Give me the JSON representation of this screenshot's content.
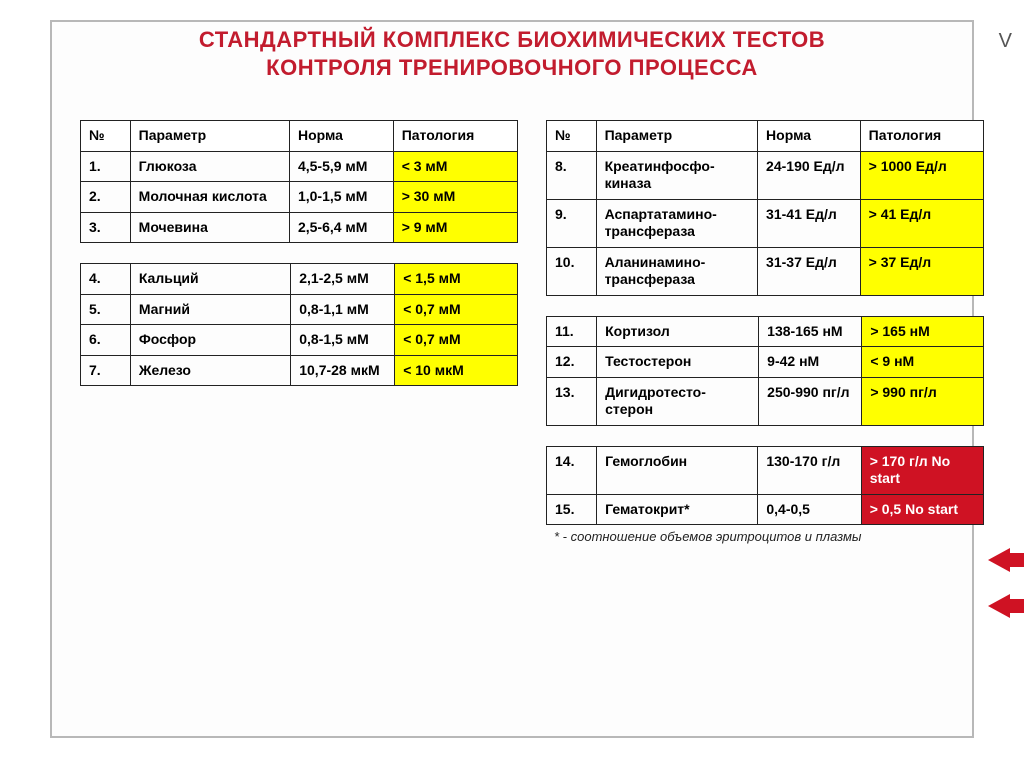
{
  "title_line1": "СТАНДАРТНЫЙ КОМПЛЕКС БИОХИМИЧЕСКИХ ТЕСТОВ",
  "title_line2": "КОНТРОЛЯ ТРЕНИРОВОЧНОГО ПРОЦЕССА",
  "edge_letter": "V",
  "headers": {
    "num": "№",
    "param": "Параметр",
    "norm": "Норма",
    "path": "Патология"
  },
  "colors": {
    "title": "#c21c2e",
    "yellow": "#ffff00",
    "red_bg": "#cf1223",
    "red_text": "#ffffff",
    "border": "#222222",
    "frame": "#b8b8b8"
  },
  "left_blocks": [
    {
      "rows": [
        {
          "num": "1.",
          "param": "Глюкоза",
          "norm": "4,5-5,9 мМ",
          "path": "< 3 мМ",
          "path_style": "yellow"
        },
        {
          "num": "2.",
          "param": "Молочная кислота",
          "norm": "1,0-1,5 мМ",
          "path": "> 30 мМ",
          "path_style": "yellow"
        },
        {
          "num": "3.",
          "param": "Мочевина",
          "norm": "2,5-6,4 мМ",
          "path": "> 9 мМ",
          "path_style": "yellow"
        }
      ]
    },
    {
      "rows": [
        {
          "num": "4.",
          "param": "Кальций",
          "norm": "2,1-2,5 мМ",
          "path": "< 1,5 мМ",
          "path_style": "yellow"
        },
        {
          "num": "5.",
          "param": "Магний",
          "norm": "0,8-1,1 мМ",
          "path": "< 0,7 мМ",
          "path_style": "yellow"
        },
        {
          "num": "6.",
          "param": "Фосфор",
          "norm": "0,8-1,5 мМ",
          "path": "< 0,7 мМ",
          "path_style": "yellow"
        },
        {
          "num": "7.",
          "param": "Железо",
          "norm": "10,7-28 мкМ",
          "path": "< 10 мкМ",
          "path_style": "yellow"
        }
      ]
    }
  ],
  "right_blocks": [
    {
      "rows": [
        {
          "num": "8.",
          "param": "Креатинфосфо-киназа",
          "norm": "24-190 Ед/л",
          "path": "> 1000 Ед/л",
          "path_style": "yellow"
        },
        {
          "num": "9.",
          "param": "Аспартатамино-трансфераза",
          "norm": "31-41 Ед/л",
          "path": "> 41 Ед/л",
          "path_style": "yellow"
        },
        {
          "num": "10.",
          "param": "Аланинамино-трансфераза",
          "norm": "31-37 Ед/л",
          "path": "> 37 Ед/л",
          "path_style": "yellow"
        }
      ]
    },
    {
      "rows": [
        {
          "num": "11.",
          "param": "Кортизол",
          "norm": "138-165 нМ",
          "path": "> 165 нМ",
          "path_style": "yellow"
        },
        {
          "num": "12.",
          "param": "Тестостерон",
          "norm": "9-42 нМ",
          "path": "< 9 нМ",
          "path_style": "yellow"
        },
        {
          "num": "13.",
          "param": "Дигидротесто-стерон",
          "norm": "250-990 пг/л",
          "path": "> 990 пг/л",
          "path_style": "yellow"
        }
      ]
    },
    {
      "rows": [
        {
          "num": "14.",
          "param": "Гемоглобин",
          "norm": "130-170 г/л",
          "path": "> 170 г/л No start",
          "path_style": "red"
        },
        {
          "num": "15.",
          "param": "Гематокрит*",
          "norm": "0,4-0,5",
          "path": "> 0,5 No start",
          "path_style": "red"
        }
      ]
    }
  ],
  "footnote": "* - соотношение объемов эритроцитов и плазмы"
}
